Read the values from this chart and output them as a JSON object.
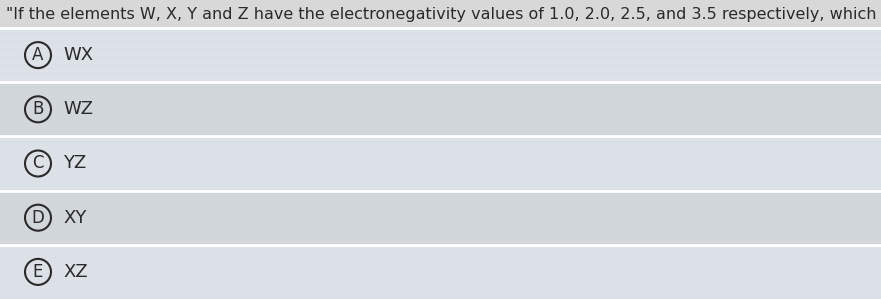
{
  "title": "\"If the elements W, X, Y and Z have the electronegativity values of 1.0, 2.0, 2.5, and 3.5 respectively, which bond is the least polar",
  "options": [
    "WX",
    "WZ",
    "YZ",
    "XY",
    "XZ"
  ],
  "labels": [
    "A",
    "B",
    "C",
    "D",
    "E"
  ],
  "bg_color": "#e8e8e8",
  "title_bg_color": "#dcdcdc",
  "row_colors": [
    "#e0e4e8",
    "#d8dce0"
  ],
  "stripe_color": "#ffffff",
  "divider_color": "#ffffff",
  "title_fontsize": 11.5,
  "option_fontsize": 13,
  "label_fontsize": 12,
  "title_color": "#2a2a2a",
  "option_color": "#2a2a2a",
  "label_color": "#2a2a2a",
  "circle_linewidth": 1.5
}
